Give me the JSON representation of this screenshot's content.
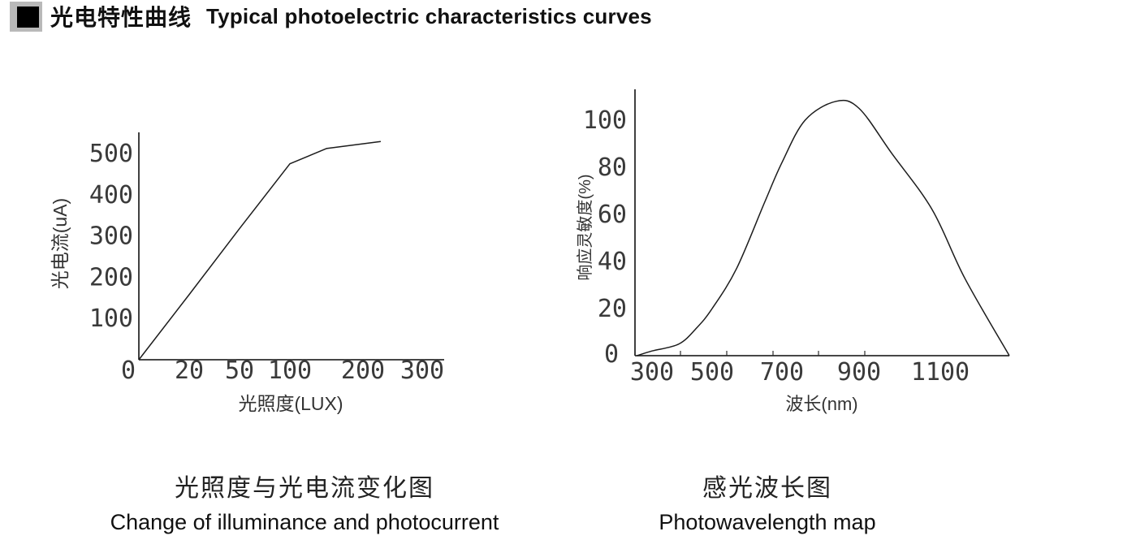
{
  "header": {
    "title_zh": "光电特性曲线",
    "title_en": "Typical photoelectric characteristics curves",
    "bullet_color": "#000000",
    "bullet_bg": "#b9b9b9"
  },
  "colors": {
    "axis": "#2b2b2b",
    "curve": "#1c1c1c",
    "tick_text": "#3a3a3a",
    "label_text": "#333333"
  },
  "chart_data": [
    {
      "type": "line",
      "id": "illuminance-photocurrent",
      "title_zh": "光照度与光电流变化图",
      "title_en": "Change of illuminance and photocurrent",
      "xlabel": "光照度(LUX)",
      "ylabel": "光电流(uA)",
      "x_ticks": [
        0,
        20,
        50,
        100,
        200,
        300
      ],
      "y_ticks": [
        100,
        200,
        300,
        400,
        500
      ],
      "ylim": [
        0,
        560
      ],
      "x_scale_note": "ticks roughly equally spaced on axis (non-linear value scale)",
      "grid": "off",
      "legend": "none",
      "points": [
        [
          0,
          0
        ],
        [
          20,
          158
        ],
        [
          50,
          318
        ],
        [
          100,
          475
        ],
        [
          150,
          512
        ],
        [
          230,
          529
        ]
      ],
      "smooth": false
    },
    {
      "type": "line",
      "id": "spectral-response",
      "title_zh": "感光波长图",
      "title_en": "Photowavelength map",
      "xlabel": "波长(nm)",
      "ylabel": "响应灵敏度(%)",
      "x_ticks": [
        300,
        500,
        700,
        900,
        1100
      ],
      "y_ticks": [
        0,
        20,
        40,
        60,
        80,
        100
      ],
      "ylim": [
        0,
        115
      ],
      "grid": "off",
      "legend": "none",
      "points": [
        [
          250,
          0
        ],
        [
          300,
          2
        ],
        [
          390,
          5
        ],
        [
          450,
          12
        ],
        [
          500,
          20
        ],
        [
          570,
          37
        ],
        [
          650,
          65
        ],
        [
          700,
          82
        ],
        [
          760,
          100
        ],
        [
          840,
          108
        ],
        [
          900,
          105
        ],
        [
          980,
          86
        ],
        [
          1080,
          62
        ],
        [
          1160,
          33
        ],
        [
          1270,
          0
        ]
      ],
      "peak": {
        "wavelength_nm": 840,
        "response_pct": 108
      },
      "smooth": true
    }
  ]
}
